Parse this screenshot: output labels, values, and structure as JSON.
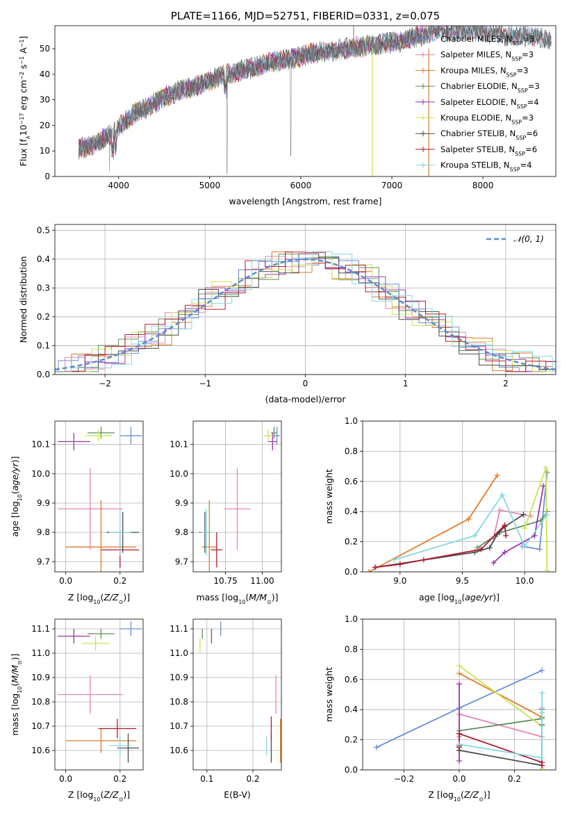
{
  "colors": {
    "chabrier_miles": "#6a8fd6",
    "salpeter_miles": "#e486b4",
    "kroupa_miles": "#e07a2a",
    "chabrier_elodie": "#5e8f5a",
    "salpeter_elodie": "#9b34b0",
    "kroupa_elodie": "#c9e351",
    "chabrier_stelib": "#4a4a4a",
    "salpeter_stelib": "#b01a2e",
    "kroupa_stelib": "#84d7e0"
  },
  "chart_data": [
    {
      "id": "spectrum",
      "type": "line",
      "title": "PLATE=1166, MJD=52751, FIBERID=0331, z=0.075",
      "xlabel": "wavelength [Angstrom, rest frame]",
      "ylabel": "Flux [f_λ10^-17 erg cm^-2 s^-1 A^-1]",
      "xlim": [
        3300,
        8800
      ],
      "ylim": [
        0,
        59
      ],
      "xticks": [
        4000,
        5000,
        6000,
        7000,
        8000
      ],
      "yticks": [
        0,
        10,
        20,
        30,
        40,
        50
      ],
      "grid": false,
      "legend_position": "right",
      "legend": [
        {
          "key": "chabrier_miles",
          "name": "Chabrier MILES, N",
          "sub": "SSP",
          "suffix": "=3"
        },
        {
          "key": "salpeter_miles",
          "name": "Salpeter MILES, N",
          "sub": "SSP",
          "suffix": "=3"
        },
        {
          "key": "kroupa_miles",
          "name": "Kroupa MILES, N",
          "sub": "SSP",
          "suffix": "=3"
        },
        {
          "key": "chabrier_elodie",
          "name": "Chabrier ELODIE, N",
          "sub": "SSP",
          "suffix": "=3"
        },
        {
          "key": "salpeter_elodie",
          "name": "Salpeter ELODIE, N",
          "sub": "SSP",
          "suffix": "=4"
        },
        {
          "key": "kroupa_elodie",
          "name": "Kroupa ELODIE, N",
          "sub": "SSP",
          "suffix": "=3"
        },
        {
          "key": "chabrier_stelib",
          "name": "Chabrier STELIB, N",
          "sub": "SSP",
          "suffix": "=6"
        },
        {
          "key": "salpeter_stelib",
          "name": "Salpeter STELIB, N",
          "sub": "SSP",
          "suffix": "=6"
        },
        {
          "key": "kroupa_stelib",
          "name": "Kroupa STELIB, N",
          "sub": "SSP",
          "suffix": "=4"
        }
      ],
      "continuum": [
        [
          3560,
          11
        ],
        [
          3700,
          12
        ],
        [
          3850,
          15
        ],
        [
          3950,
          17
        ],
        [
          4050,
          21
        ],
        [
          4150,
          24
        ],
        [
          4300,
          27
        ],
        [
          4500,
          31
        ],
        [
          4700,
          34
        ],
        [
          4900,
          36
        ],
        [
          5100,
          39
        ],
        [
          5300,
          41
        ],
        [
          5500,
          43
        ],
        [
          5700,
          45
        ],
        [
          5900,
          46
        ],
        [
          6100,
          48
        ],
        [
          6300,
          49
        ],
        [
          6500,
          50
        ],
        [
          6700,
          51
        ],
        [
          6900,
          52
        ],
        [
          7100,
          53
        ],
        [
          7300,
          55
        ],
        [
          7500,
          57
        ],
        [
          7700,
          57
        ],
        [
          7900,
          57
        ],
        [
          8100,
          56
        ],
        [
          8300,
          55
        ],
        [
          8500,
          55
        ],
        [
          8700,
          54
        ]
      ]
    },
    {
      "id": "residuals",
      "type": "histogram",
      "xlabel": "(data-model)/error",
      "ylabel": "Normed distribution",
      "xlim": [
        -2.5,
        2.5
      ],
      "ylim": [
        0,
        0.52
      ],
      "xticks": [
        -2,
        -1,
        0,
        1,
        2
      ],
      "yticks": [
        0.0,
        0.1,
        0.2,
        0.3,
        0.4,
        0.5
      ],
      "grid": true,
      "legend_position": "upper right",
      "reference_label": "𝒩(0, 1)",
      "reference_color": "#5b8bd0"
    },
    {
      "id": "age_vs_Z",
      "type": "scatter",
      "xlabel": "Z [log10(Z/Z⊙)]",
      "ylabel": "age  [log10(age/yr)]",
      "xlim": [
        -0.04,
        0.285
      ],
      "ylim": [
        9.665,
        10.18
      ],
      "xticks": [
        0.0,
        0.2
      ],
      "yticks": [
        9.7,
        9.8,
        9.9,
        10.0,
        10.1
      ],
      "grid": true,
      "points": [
        {
          "key": "chabrier_miles",
          "x": 0.24,
          "y": 10.13,
          "ex": 0.04,
          "ey": 0.03
        },
        {
          "key": "salpeter_miles",
          "x": 0.09,
          "y": 9.88,
          "ex": 0.12,
          "ey": 0.14
        },
        {
          "key": "kroupa_miles",
          "x": 0.13,
          "y": 9.75,
          "ex": 0.13,
          "ey": 0.16
        },
        {
          "key": "chabrier_elodie",
          "x": 0.13,
          "y": 10.14,
          "ex": 0.05,
          "ey": 0.02
        },
        {
          "key": "salpeter_elodie",
          "x": 0.03,
          "y": 10.11,
          "ex": 0.06,
          "ey": 0.03
        },
        {
          "key": "kroupa_elodie",
          "x": 0.12,
          "y": 10.13,
          "ex": 0.05,
          "ey": 0.02
        },
        {
          "key": "chabrier_stelib",
          "x": 0.21,
          "y": 9.8,
          "ex": 0.06,
          "ey": 0.07
        },
        {
          "key": "salpeter_stelib",
          "x": 0.2,
          "y": 9.74,
          "ex": 0.07,
          "ey": 0.06
        },
        {
          "key": "kroupa_stelib",
          "x": 0.2,
          "y": 9.8,
          "ex": 0.04,
          "ey": 0.08
        }
      ]
    },
    {
      "id": "age_vs_mass",
      "type": "scatter",
      "xlabel": "mass [log10(M/M⊙)]",
      "ylabel": "",
      "xlim": [
        10.53,
        11.13
      ],
      "ylim": [
        9.665,
        10.18
      ],
      "xticks": [
        10.75,
        11.0
      ],
      "xticklabels": [
        "10.75",
        "11.00"
      ],
      "yticks": [
        9.7,
        9.8,
        9.9,
        10.0,
        10.1
      ],
      "grid": true,
      "points": [
        {
          "key": "chabrier_miles",
          "x": 11.1,
          "y": 10.13,
          "ex": 0.02,
          "ey": 0.03
        },
        {
          "key": "salpeter_miles",
          "x": 10.83,
          "y": 9.88,
          "ex": 0.09,
          "ey": 0.14
        },
        {
          "key": "kroupa_miles",
          "x": 10.64,
          "y": 9.75,
          "ex": 0.05,
          "ey": 0.16
        },
        {
          "key": "chabrier_elodie",
          "x": 11.08,
          "y": 10.14,
          "ex": 0.02,
          "ey": 0.02
        },
        {
          "key": "salpeter_elodie",
          "x": 11.07,
          "y": 10.11,
          "ex": 0.03,
          "ey": 0.03
        },
        {
          "key": "kroupa_elodie",
          "x": 11.04,
          "y": 10.13,
          "ex": 0.03,
          "ey": 0.02
        },
        {
          "key": "chabrier_stelib",
          "x": 10.61,
          "y": 9.8,
          "ex": 0.04,
          "ey": 0.07
        },
        {
          "key": "salpeter_stelib",
          "x": 10.69,
          "y": 9.74,
          "ex": 0.04,
          "ey": 0.06
        },
        {
          "key": "kroupa_stelib",
          "x": 10.62,
          "y": 9.8,
          "ex": 0.04,
          "ey": 0.08
        }
      ]
    },
    {
      "id": "weight_vs_age",
      "type": "line",
      "xlabel": "age  [log10(age/yr)]",
      "ylabel": "mass weight",
      "xlim": [
        8.7,
        10.25
      ],
      "ylim": [
        0,
        1
      ],
      "xticks": [
        9.0,
        9.5,
        10.0
      ],
      "yticks": [
        0.0,
        0.2,
        0.4,
        0.6,
        0.8,
        1.0
      ],
      "grid": true,
      "series": [
        {
          "key": "chabrier_miles",
          "x": [
            9.98,
            10.12,
            10.18
          ],
          "y": [
            0.17,
            0.15,
            0.66
          ]
        },
        {
          "key": "salpeter_miles",
          "x": [
            9.75,
            9.8,
            10.05
          ],
          "y": [
            0.22,
            0.41,
            0.37
          ]
        },
        {
          "key": "kroupa_miles",
          "x": [
            8.75,
            9.55,
            9.78
          ],
          "y": [
            0.0,
            0.35,
            0.64
          ]
        },
        {
          "key": "chabrier_elodie",
          "x": [
            9.62,
            9.8,
            10.13,
            10.18
          ],
          "y": [
            0.16,
            0.26,
            0.34,
            0.4
          ]
        },
        {
          "key": "salpeter_elodie",
          "x": [
            9.75,
            9.84,
            10.08,
            10.15
          ],
          "y": [
            0.06,
            0.13,
            0.24,
            0.57
          ]
        },
        {
          "key": "kroupa_elodie",
          "x": [
            10.0,
            10.17,
            10.18
          ],
          "y": [
            0.29,
            0.69,
            0.01
          ]
        },
        {
          "key": "chabrier_stelib",
          "x": [
            8.8,
            9.6,
            9.72,
            9.78,
            9.84,
            9.99
          ],
          "y": [
            0.03,
            0.13,
            0.16,
            0.25,
            0.3,
            0.38
          ]
        },
        {
          "key": "salpeter_stelib",
          "x": [
            8.8,
            9.0,
            9.19,
            9.65,
            9.84,
            9.85
          ],
          "y": [
            0.03,
            0.05,
            0.08,
            0.15,
            0.31,
            0.24
          ]
        },
        {
          "key": "kroupa_stelib",
          "x": [
            8.95,
            9.6,
            9.82,
            10.0,
            10.18
          ],
          "y": [
            0.08,
            0.24,
            0.51,
            0.17,
            0.38
          ]
        }
      ]
    },
    {
      "id": "mass_vs_Z",
      "type": "scatter",
      "xlabel": "Z [log10(Z/Z⊙)]",
      "ylabel": "mass [log10(M/M⊙)]",
      "xlim": [
        -0.04,
        0.285
      ],
      "ylim": [
        10.52,
        11.14
      ],
      "xticks": [
        0.0,
        0.2
      ],
      "yticks": [
        10.6,
        10.7,
        10.8,
        10.9,
        11.0,
        11.1
      ],
      "grid": true,
      "points": [
        {
          "key": "chabrier_miles",
          "x": 0.24,
          "y": 11.1,
          "ex": 0.04,
          "ey": 0.03
        },
        {
          "key": "salpeter_miles",
          "x": 0.09,
          "y": 10.83,
          "ex": 0.12,
          "ey": 0.08
        },
        {
          "key": "kroupa_miles",
          "x": 0.13,
          "y": 10.64,
          "ex": 0.13,
          "ey": 0.05
        },
        {
          "key": "chabrier_elodie",
          "x": 0.13,
          "y": 11.08,
          "ex": 0.05,
          "ey": 0.02
        },
        {
          "key": "salpeter_elodie",
          "x": 0.03,
          "y": 11.07,
          "ex": 0.06,
          "ey": 0.03
        },
        {
          "key": "kroupa_elodie",
          "x": 0.11,
          "y": 11.04,
          "ex": 0.05,
          "ey": 0.03
        },
        {
          "key": "chabrier_stelib",
          "x": 0.23,
          "y": 10.61,
          "ex": 0.04,
          "ey": 0.06
        },
        {
          "key": "salpeter_stelib",
          "x": 0.19,
          "y": 10.69,
          "ex": 0.07,
          "ey": 0.04
        },
        {
          "key": "kroupa_stelib",
          "x": 0.2,
          "y": 10.62,
          "ex": 0.04,
          "ey": 0.04
        }
      ]
    },
    {
      "id": "mass_vs_EBV",
      "type": "scatter",
      "xlabel": "E(B-V)",
      "ylabel": "",
      "xlim": [
        0.07,
        0.262
      ],
      "ylim": [
        10.52,
        11.14
      ],
      "xticks": [
        0.1,
        0.2
      ],
      "yticks": [
        10.6,
        10.7,
        10.8,
        10.9,
        11.0,
        11.1
      ],
      "grid": true,
      "points": [
        {
          "key": "chabrier_miles",
          "x": 0.13,
          "y": 11.1,
          "ex": 0.0,
          "ey": 0.03
        },
        {
          "key": "salpeter_miles",
          "x": 0.25,
          "y": 10.83,
          "ex": 0.0,
          "ey": 0.08
        },
        {
          "key": "kroupa_miles",
          "x": 0.26,
          "y": 10.64,
          "ex": 0.0,
          "ey": 0.09
        },
        {
          "key": "chabrier_elodie",
          "x": 0.09,
          "y": 11.08,
          "ex": 0.0,
          "ey": 0.02
        },
        {
          "key": "salpeter_elodie",
          "x": 0.11,
          "y": 11.07,
          "ex": 0.0,
          "ey": 0.03
        },
        {
          "key": "kroupa_elodie",
          "x": 0.085,
          "y": 11.03,
          "ex": 0.0,
          "ey": 0.03
        },
        {
          "key": "chabrier_stelib",
          "x": 0.24,
          "y": 10.61,
          "ex": 0.0,
          "ey": 0.06
        },
        {
          "key": "salpeter_stelib",
          "x": 0.24,
          "y": 10.69,
          "ex": 0.0,
          "ey": 0.05
        },
        {
          "key": "kroupa_stelib",
          "x": 0.23,
          "y": 10.62,
          "ex": 0.0,
          "ey": 0.04
        }
      ]
    },
    {
      "id": "weight_vs_Z",
      "type": "line",
      "xlabel": "Z [log10(Z/Z⊙)]",
      "ylabel": "mass weight",
      "xlim": [
        -0.35,
        0.35
      ],
      "ylim": [
        0,
        1
      ],
      "xticks": [
        -0.2,
        0.0,
        0.2
      ],
      "yticks": [
        0.0,
        0.2,
        0.4,
        0.6,
        0.8,
        1.0
      ],
      "grid": true,
      "series": [
        {
          "key": "chabrier_miles",
          "x": [
            -0.3,
            0.0,
            0.3
          ],
          "y": [
            0.15,
            0.41,
            0.66
          ]
        },
        {
          "key": "salpeter_miles",
          "x": [
            0.0,
            0.0,
            0.3,
            0.3
          ],
          "y": [
            0.22,
            0.37,
            0.22,
            0.41
          ]
        },
        {
          "key": "kroupa_miles",
          "x": [
            0.0,
            0.3
          ],
          "y": [
            0.64,
            0.35
          ]
        },
        {
          "key": "chabrier_elodie",
          "x": [
            0.0,
            0.3,
            0.3
          ],
          "y": [
            0.26,
            0.34,
            0.4
          ]
        },
        {
          "key": "salpeter_elodie",
          "x": [
            0.0,
            0.0,
            0.0,
            0.0
          ],
          "y": [
            0.06,
            0.13,
            0.24,
            0.57
          ]
        },
        {
          "key": "kroupa_elodie",
          "x": [
            0.0,
            0.3,
            0.3
          ],
          "y": [
            0.69,
            0.29,
            0.01
          ]
        },
        {
          "key": "chabrier_stelib",
          "x": [
            0.0,
            0.0,
            0.3,
            0.3
          ],
          "y": [
            0.16,
            0.13,
            0.03,
            0.3
          ]
        },
        {
          "key": "salpeter_stelib",
          "x": [
            0.0,
            0.0,
            0.3,
            0.3
          ],
          "y": [
            0.15,
            0.24,
            0.05,
            0.03
          ]
        },
        {
          "key": "kroupa_stelib",
          "x": [
            0.0,
            0.3,
            0.3,
            0.3
          ],
          "y": [
            0.17,
            0.08,
            0.38,
            0.51
          ]
        }
      ]
    }
  ]
}
